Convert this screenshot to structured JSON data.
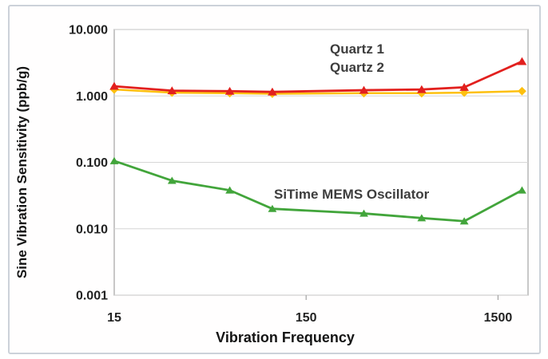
{
  "chart_data": {
    "type": "line",
    "title": "",
    "xlabel": "Vibration Frequency",
    "ylabel": "Sine Vibration Sensitivity (ppb/g)",
    "x_scale": "log",
    "y_scale": "log",
    "xlim": [
      15,
      2150
    ],
    "ylim": [
      0.001,
      10
    ],
    "grid": "horizontal-decades-only",
    "legend_position": "in-plot text annotations",
    "x": [
      15,
      30,
      60,
      100,
      300,
      600,
      1000,
      2000
    ],
    "series": [
      {
        "name": "Quartz 1",
        "color": "#e2201e",
        "marker": "triangle",
        "marker_size": 5.4,
        "line_width": 2.8,
        "values": [
          1.4,
          1.2,
          1.18,
          1.15,
          1.22,
          1.25,
          1.35,
          3.3
        ]
      },
      {
        "name": "Quartz 2",
        "color": "#fdc00f",
        "marker": "diamond",
        "marker_size": 5.4,
        "line_width": 2.5,
        "values": [
          1.25,
          1.12,
          1.1,
          1.08,
          1.1,
          1.1,
          1.12,
          1.18
        ]
      },
      {
        "name": "SiTime MEMS Oscillator",
        "color": "#42a53b",
        "marker": "triangle",
        "marker_size": 5.0,
        "line_width": 2.8,
        "values": [
          0.105,
          0.053,
          0.038,
          0.02,
          0.017,
          0.0145,
          0.013,
          0.038
        ]
      }
    ],
    "y_ticks": [
      {
        "label": "10.000",
        "value": 10
      },
      {
        "label": "1.000",
        "value": 1
      },
      {
        "label": "0.100",
        "value": 0.1
      },
      {
        "label": "0.010",
        "value": 0.01
      },
      {
        "label": "0.001",
        "value": 0.001
      }
    ],
    "x_ticks": [
      {
        "label": "15",
        "value": 15,
        "tick_mark": false
      },
      {
        "label": "150",
        "value": 150,
        "tick_mark": true
      },
      {
        "label": "1500",
        "value": 1500,
        "tick_mark": true
      }
    ],
    "annotations": [
      {
        "text": "Quartz 1"
      },
      {
        "text": "Quartz 2"
      },
      {
        "text": "SiTime MEMS Oscillator"
      }
    ],
    "colors": {
      "gridline": "#d6d6d6",
      "plot_border": "#a3a3a3",
      "page_border": "#ccd2d9"
    }
  }
}
